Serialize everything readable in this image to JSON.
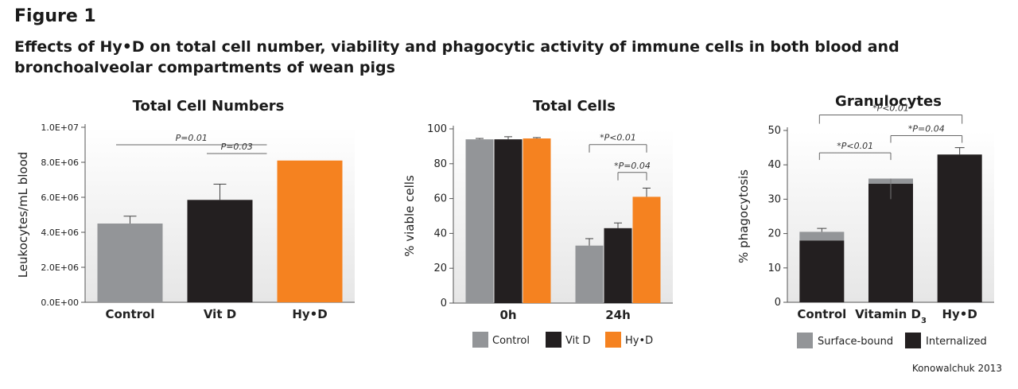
{
  "figure_label": "Figure 1",
  "figure_title": "Effects of Hy•D on total cell number, viability and phagocytic activity of immune cells in both blood and bronchoalveolar compartments of wean pigs",
  "credit": "Konowalchuk 2013",
  "colors": {
    "control": "#939598",
    "vitd": "#231f20",
    "hyd": "#f58220",
    "surface": "#939598",
    "internalized": "#231f20"
  },
  "chart_data": [
    {
      "type": "bar",
      "title": "Total Cell Numbers",
      "ylabel": "Leukocytes/mL blood",
      "categories": [
        "Control",
        "Vit D",
        "Hy•D"
      ],
      "values": [
        4500000,
        5850000,
        8100000
      ],
      "errors": [
        420000,
        900000,
        0
      ],
      "ylim": [
        0,
        10000000
      ],
      "yticks": [
        0,
        2000000,
        4000000,
        6000000,
        8000000,
        10000000
      ],
      "ytick_labels": [
        "0.0E+00",
        "2.0E+06",
        "4.0E+06",
        "6.0E+06",
        "8.0E+06",
        "1.0E+07"
      ],
      "annotations": [
        {
          "text": "P=0.01",
          "from": "Control",
          "to": "Hy•D"
        },
        {
          "text": "P=0.03",
          "from": "Vit D",
          "to": "Hy•D"
        }
      ]
    },
    {
      "type": "bar",
      "title": "Total Cells",
      "ylabel": "% viable cells",
      "categories": [
        "0h",
        "24h"
      ],
      "series": [
        {
          "name": "Control",
          "values": [
            94,
            33
          ],
          "errors": [
            0.5,
            4
          ]
        },
        {
          "name": "Vit D",
          "values": [
            94,
            43
          ],
          "errors": [
            1.5,
            3
          ]
        },
        {
          "name": "Hy•D",
          "values": [
            94.5,
            61
          ],
          "errors": [
            0.5,
            5
          ]
        }
      ],
      "ylim": [
        0,
        100
      ],
      "yticks": [
        0,
        20,
        40,
        60,
        80,
        100
      ],
      "legend": "bottom",
      "annotations": [
        {
          "text": "*P<0.01",
          "category": "24h",
          "from": "Control",
          "to": "Hy•D"
        },
        {
          "text": "*P=0.04",
          "category": "24h",
          "from": "Vit D",
          "to": "Hy•D"
        }
      ]
    },
    {
      "type": "bar",
      "stacked": true,
      "title": "Granulocytes",
      "ylabel": "% phagocytosis",
      "categories": [
        "Control",
        "Vitamin D3",
        "Hy•D"
      ],
      "series": [
        {
          "name": "Internalized",
          "values": [
            18,
            34.5,
            43
          ]
        },
        {
          "name": "Surface-bound",
          "values": [
            2.5,
            1.5,
            0
          ]
        }
      ],
      "errors": [
        1,
        6,
        2
      ],
      "ylim": [
        0,
        50
      ],
      "yticks": [
        0,
        10,
        20,
        30,
        40,
        50
      ],
      "legend": "bottom",
      "annotations": [
        {
          "text": "*P<0.01",
          "from": "Control",
          "to": "Hy•D"
        },
        {
          "text": "*P<0.01",
          "from": "Control",
          "to": "Vitamin D3"
        },
        {
          "text": "*P=0.04",
          "from": "Vitamin D3",
          "to": "Hy•D"
        }
      ]
    }
  ]
}
